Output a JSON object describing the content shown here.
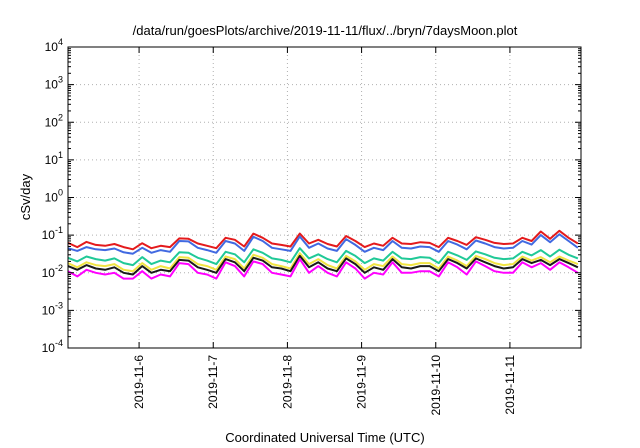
{
  "chart_data": {
    "type": "line",
    "title": "/data/run/goesPlots/archive/2019-11-11/flux/../bryn/7daysMoon.plot",
    "xlabel": "Coordinated Universal Time (UTC)",
    "ylabel": "cSv/day",
    "yscale": "log",
    "ylim": [
      0.0001,
      10000
    ],
    "xlim": [
      "2019-11-05T01:00",
      "2019-11-11T23:00"
    ],
    "yticks": [
      {
        "base": "10",
        "exp": "-4",
        "value": 0.0001
      },
      {
        "base": "10",
        "exp": "-3",
        "value": 0.001
      },
      {
        "base": "10",
        "exp": "-2",
        "value": 0.01
      },
      {
        "base": "10",
        "exp": "-1",
        "value": 0.1
      },
      {
        "base": "10",
        "exp": "0",
        "value": 1
      },
      {
        "base": "10",
        "exp": "1",
        "value": 10
      },
      {
        "base": "10",
        "exp": "2",
        "value": 100
      },
      {
        "base": "10",
        "exp": "3",
        "value": 1000
      },
      {
        "base": "10",
        "exp": "4",
        "value": 10000
      }
    ],
    "xticks": [
      {
        "label": "2019-11-6",
        "value": "2019-11-06T00:00"
      },
      {
        "label": "2019-11-7",
        "value": "2019-11-07T00:00"
      },
      {
        "label": "2019-11-8",
        "value": "2019-11-08T00:00"
      },
      {
        "label": "2019-11-9",
        "value": "2019-11-09T00:00"
      },
      {
        "label": "2019-11-10",
        "value": "2019-11-10T00:00"
      },
      {
        "label": "2019-11-11",
        "value": "2019-11-11T00:00"
      }
    ],
    "grid": true,
    "x": [
      "2019-11-05T01:00",
      "2019-11-05T04:00",
      "2019-11-05T07:00",
      "2019-11-05T10:00",
      "2019-11-05T13:00",
      "2019-11-05T16:00",
      "2019-11-05T19:00",
      "2019-11-05T22:00",
      "2019-11-06T01:00",
      "2019-11-06T04:00",
      "2019-11-06T07:00",
      "2019-11-06T10:00",
      "2019-11-06T13:00",
      "2019-11-06T16:00",
      "2019-11-06T19:00",
      "2019-11-06T22:00",
      "2019-11-07T01:00",
      "2019-11-07T04:00",
      "2019-11-07T07:00",
      "2019-11-07T10:00",
      "2019-11-07T13:00",
      "2019-11-07T16:00",
      "2019-11-07T19:00",
      "2019-11-07T22:00",
      "2019-11-08T01:00",
      "2019-11-08T04:00",
      "2019-11-08T07:00",
      "2019-11-08T10:00",
      "2019-11-08T13:00",
      "2019-11-08T16:00",
      "2019-11-08T19:00",
      "2019-11-08T22:00",
      "2019-11-09T01:00",
      "2019-11-09T04:00",
      "2019-11-09T07:00",
      "2019-11-09T10:00",
      "2019-11-09T13:00",
      "2019-11-09T16:00",
      "2019-11-09T19:00",
      "2019-11-09T22:00",
      "2019-11-10T01:00",
      "2019-11-10T04:00",
      "2019-11-10T07:00",
      "2019-11-10T10:00",
      "2019-11-10T13:00",
      "2019-11-10T16:00",
      "2019-11-10T19:00",
      "2019-11-10T22:00",
      "2019-11-11T01:00",
      "2019-11-11T04:00",
      "2019-11-11T07:00",
      "2019-11-11T10:00",
      "2019-11-11T13:00",
      "2019-11-11T16:00",
      "2019-11-11T19:00",
      "2019-11-11T22:00"
    ],
    "series": [
      {
        "color": "#e41a1c",
        "values": [
          0.062,
          0.048,
          0.066,
          0.055,
          0.052,
          0.058,
          0.048,
          0.042,
          0.061,
          0.045,
          0.052,
          0.048,
          0.082,
          0.08,
          0.06,
          0.052,
          0.045,
          0.085,
          0.075,
          0.05,
          0.11,
          0.085,
          0.06,
          0.055,
          0.05,
          0.11,
          0.06,
          0.075,
          0.058,
          0.05,
          0.095,
          0.07,
          0.048,
          0.06,
          0.052,
          0.085,
          0.06,
          0.058,
          0.065,
          0.062,
          0.048,
          0.085,
          0.07,
          0.055,
          0.088,
          0.075,
          0.062,
          0.058,
          0.06,
          0.085,
          0.07,
          0.125,
          0.08,
          0.13,
          0.085,
          0.06
        ]
      },
      {
        "color": "#4169e1",
        "values": [
          0.045,
          0.038,
          0.048,
          0.042,
          0.04,
          0.044,
          0.035,
          0.032,
          0.046,
          0.034,
          0.04,
          0.036,
          0.07,
          0.068,
          0.046,
          0.04,
          0.034,
          0.07,
          0.06,
          0.038,
          0.09,
          0.07,
          0.046,
          0.042,
          0.038,
          0.092,
          0.046,
          0.06,
          0.044,
          0.038,
          0.078,
          0.055,
          0.036,
          0.046,
          0.04,
          0.07,
          0.046,
          0.044,
          0.05,
          0.048,
          0.036,
          0.07,
          0.056,
          0.042,
          0.072,
          0.06,
          0.048,
          0.044,
          0.046,
          0.07,
          0.056,
          0.1,
          0.065,
          0.105,
          0.07,
          0.046
        ]
      },
      {
        "color": "#20c997",
        "values": [
          0.025,
          0.02,
          0.027,
          0.023,
          0.021,
          0.024,
          0.018,
          0.016,
          0.026,
          0.017,
          0.021,
          0.019,
          0.035,
          0.034,
          0.025,
          0.021,
          0.017,
          0.036,
          0.031,
          0.019,
          0.042,
          0.034,
          0.024,
          0.022,
          0.019,
          0.045,
          0.024,
          0.031,
          0.023,
          0.019,
          0.038,
          0.028,
          0.018,
          0.024,
          0.021,
          0.036,
          0.024,
          0.023,
          0.026,
          0.025,
          0.018,
          0.036,
          0.029,
          0.022,
          0.037,
          0.031,
          0.025,
          0.023,
          0.024,
          0.036,
          0.029,
          0.04,
          0.027,
          0.041,
          0.03,
          0.024
        ]
      },
      {
        "color": "#f0e442",
        "values": [
          0.018,
          0.014,
          0.019,
          0.016,
          0.015,
          0.017,
          0.012,
          0.011,
          0.018,
          0.012,
          0.015,
          0.013,
          0.026,
          0.025,
          0.017,
          0.015,
          0.012,
          0.027,
          0.023,
          0.013,
          0.03,
          0.025,
          0.017,
          0.015,
          0.013,
          0.033,
          0.017,
          0.023,
          0.016,
          0.013,
          0.028,
          0.02,
          0.012,
          0.017,
          0.015,
          0.027,
          0.017,
          0.016,
          0.018,
          0.018,
          0.013,
          0.027,
          0.021,
          0.015,
          0.028,
          0.023,
          0.018,
          0.016,
          0.017,
          0.027,
          0.021,
          0.026,
          0.019,
          0.027,
          0.021,
          0.017
        ]
      },
      {
        "color": "#1a1a1a",
        "values": [
          0.015,
          0.012,
          0.016,
          0.013,
          0.012,
          0.014,
          0.01,
          0.009,
          0.015,
          0.01,
          0.012,
          0.011,
          0.022,
          0.021,
          0.014,
          0.012,
          0.01,
          0.023,
          0.019,
          0.011,
          0.025,
          0.021,
          0.014,
          0.013,
          0.011,
          0.028,
          0.014,
          0.019,
          0.013,
          0.011,
          0.024,
          0.017,
          0.01,
          0.014,
          0.012,
          0.023,
          0.014,
          0.013,
          0.015,
          0.015,
          0.011,
          0.023,
          0.018,
          0.013,
          0.024,
          0.019,
          0.015,
          0.013,
          0.014,
          0.023,
          0.018,
          0.022,
          0.016,
          0.023,
          0.018,
          0.014
        ]
      },
      {
        "color": "#ff00ff",
        "values": [
          0.011,
          0.008,
          0.012,
          0.01,
          0.009,
          0.01,
          0.007,
          0.007,
          0.011,
          0.007,
          0.009,
          0.008,
          0.018,
          0.017,
          0.01,
          0.009,
          0.007,
          0.019,
          0.015,
          0.008,
          0.02,
          0.017,
          0.01,
          0.009,
          0.008,
          0.023,
          0.01,
          0.015,
          0.01,
          0.008,
          0.019,
          0.013,
          0.007,
          0.01,
          0.009,
          0.019,
          0.01,
          0.01,
          0.011,
          0.011,
          0.008,
          0.019,
          0.014,
          0.009,
          0.02,
          0.015,
          0.011,
          0.01,
          0.01,
          0.019,
          0.014,
          0.018,
          0.012,
          0.019,
          0.014,
          0.01
        ]
      }
    ]
  }
}
